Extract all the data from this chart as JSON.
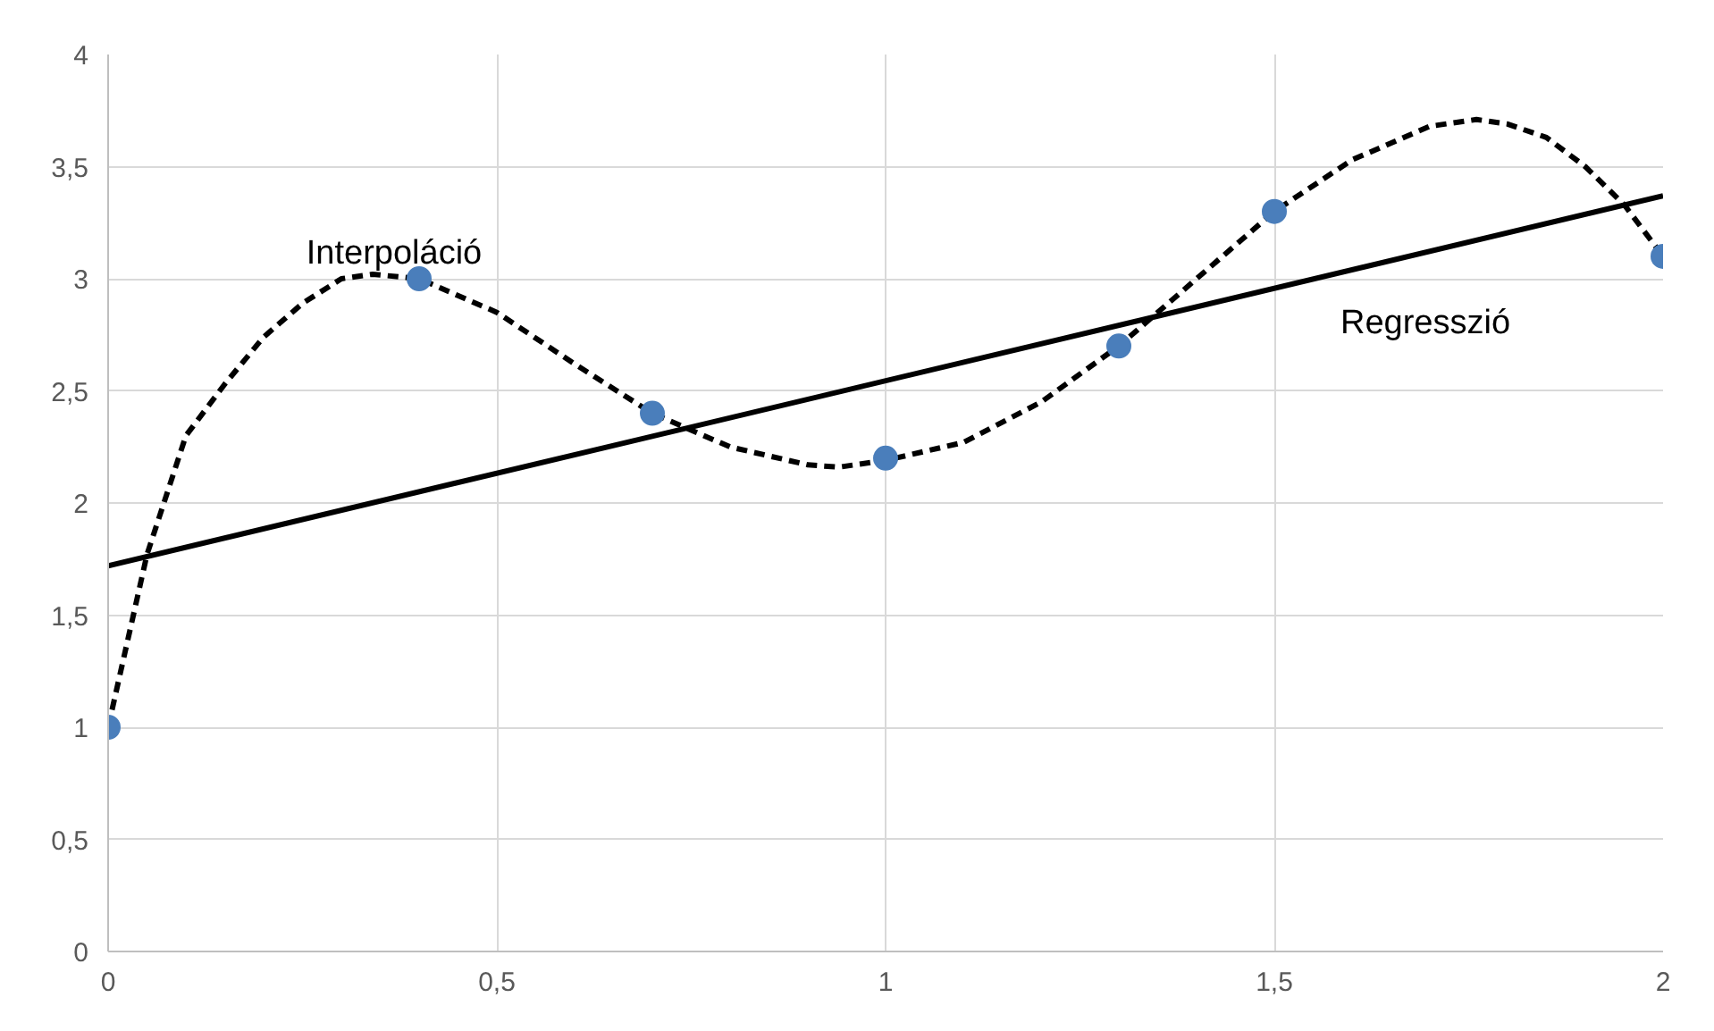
{
  "chart_data": {
    "type": "scatter",
    "xlim": [
      0,
      2
    ],
    "ylim": [
      0,
      4
    ],
    "xticks": [
      0,
      {
        "value": 0.5,
        "label": "0,5"
      },
      1,
      {
        "value": 1.5,
        "label": "1,5"
      },
      2
    ],
    "yticks": [
      0,
      {
        "value": 0.5,
        "label": "0,5"
      },
      1,
      {
        "value": 1.5,
        "label": "1,5"
      },
      2,
      {
        "value": 2.5,
        "label": "2,5"
      },
      3,
      {
        "value": 3.5,
        "label": "3,5"
      },
      4
    ],
    "grid": true,
    "series": [
      {
        "type": "line",
        "color": "#000000",
        "line_style": "dashed",
        "marker": "none",
        "x": [
          0,
          0.05,
          0.1,
          0.15,
          0.2,
          0.25,
          0.3,
          0.34,
          0.4,
          0.5,
          0.6,
          0.7,
          0.8,
          0.9,
          0.94,
          1.0,
          1.1,
          1.2,
          1.3,
          1.4,
          1.5,
          1.6,
          1.7,
          1.76,
          1.8,
          1.85,
          1.9,
          1.95,
          2.0
        ],
        "values": [
          1,
          1.77,
          2.3,
          2.53,
          2.74,
          2.89,
          3.0,
          3.02,
          3.0,
          2.85,
          2.62,
          2.4,
          2.25,
          2.17,
          2.16,
          2.19,
          2.27,
          2.45,
          2.7,
          3.0,
          3.3,
          3.53,
          3.68,
          3.71,
          3.69,
          3.63,
          3.5,
          3.33,
          3.1
        ]
      },
      {
        "type": "line",
        "color": "#000000",
        "line_style": "solid",
        "marker": "none",
        "x": [
          0,
          2
        ],
        "values": [
          1.72,
          3.37
        ]
      },
      {
        "color": "#4a7ebb",
        "marker": "circle",
        "x": [
          0,
          0.4,
          0.7,
          1,
          1.3,
          1.5,
          2
        ],
        "values": [
          1,
          3,
          2.4,
          2.2,
          2.7,
          3.3,
          3.1
        ]
      }
    ],
    "annotations": [
      "Interpoláció",
      "Regresszió"
    ]
  }
}
